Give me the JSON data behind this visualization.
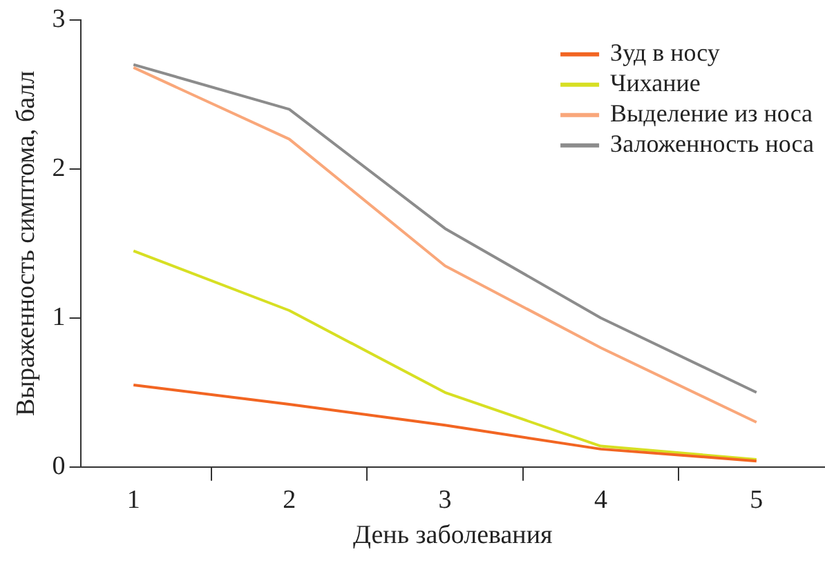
{
  "chart_data": {
    "type": "line",
    "xlabel": "День заболевания",
    "ylabel": "Выраженность симптома, балл",
    "x": [
      1,
      2,
      3,
      4,
      5
    ],
    "xlim": [
      0.66,
      5.44
    ],
    "xticks": [
      1,
      {
        "value": 1.5,
        "label": null
      },
      2,
      {
        "value": 2.5,
        "label": null
      },
      3,
      {
        "value": 3.5,
        "label": null
      },
      4,
      {
        "value": 4.5,
        "label": null
      },
      5
    ],
    "ylim": [
      0,
      3
    ],
    "yticks": [
      0,
      1,
      2,
      3
    ],
    "grid": false,
    "legend": "top right",
    "marker": "none",
    "line_style": "solid",
    "series": [
      {
        "name": "Зуд в носу",
        "color": "#f26522",
        "values": [
          0.55,
          0.42,
          0.28,
          0.12,
          0.04
        ]
      },
      {
        "name": "Чихание",
        "color": "#d7df23",
        "values": [
          1.45,
          1.05,
          0.5,
          0.14,
          0.05
        ]
      },
      {
        "name": "Выделение из носа",
        "color": "#f9a77a",
        "values": [
          2.68,
          2.2,
          1.35,
          0.8,
          0.3
        ]
      },
      {
        "name": "Заложенность носа",
        "color": "#8c8c8c",
        "values": [
          2.7,
          2.4,
          1.6,
          1.0,
          0.5
        ]
      }
    ]
  }
}
